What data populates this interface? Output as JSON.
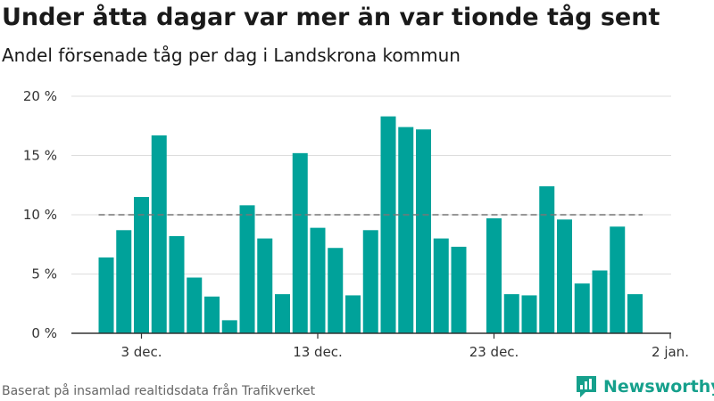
{
  "title": "Under åtta dagar var mer än var tionde tåg sent",
  "subtitle": "Andel försenade tåg per dag i Landskrona kommun",
  "source": "Baserat på insamlad realtidsdata från Trafikverket",
  "brand": {
    "name": "Newsworthy",
    "icon": "newsworthy-logo-icon",
    "color": "#16a08c"
  },
  "chart_data": {
    "type": "bar",
    "categories": [
      "1 dec.",
      "2 dec.",
      "3 dec.",
      "4 dec.",
      "5 dec.",
      "6 dec.",
      "7 dec.",
      "8 dec.",
      "9 dec.",
      "10 dec.",
      "11 dec.",
      "12 dec.",
      "13 dec.",
      "14 dec.",
      "15 dec.",
      "16 dec.",
      "17 dec.",
      "18 dec.",
      "19 dec.",
      "20 dec.",
      "21 dec.",
      "22 dec.",
      "23 dec.",
      "24 dec.",
      "25 dec.",
      "26 dec.",
      "27 dec.",
      "28 dec.",
      "29 dec.",
      "30 dec.",
      "31 dec."
    ],
    "values": [
      6.4,
      8.7,
      11.5,
      16.7,
      8.2,
      4.7,
      3.1,
      1.1,
      10.8,
      8.0,
      3.3,
      15.2,
      8.9,
      7.2,
      3.2,
      8.7,
      18.3,
      17.4,
      17.2,
      8.0,
      7.3,
      null,
      9.7,
      3.3,
      3.2,
      12.4,
      9.6,
      4.2,
      5.3,
      9.0,
      3.3
    ],
    "bar_color": "#00a29a",
    "reference_line": {
      "value": 10,
      "style": "dashed",
      "color": "#777777"
    },
    "ylim": [
      0,
      20
    ],
    "yticks": [
      0,
      5,
      10,
      15,
      20
    ],
    "ytick_labels": [
      "0 %",
      "5 %",
      "10 %",
      "15 %",
      "20 %"
    ],
    "xticks": [
      {
        "label": "3 dec.",
        "at": 3
      },
      {
        "label": "13 dec.",
        "at": 13
      },
      {
        "label": "23 dec.",
        "at": 23
      },
      {
        "label": "2 jan.",
        "at": 33
      }
    ],
    "grid": true,
    "xlabel": "",
    "ylabel": ""
  }
}
